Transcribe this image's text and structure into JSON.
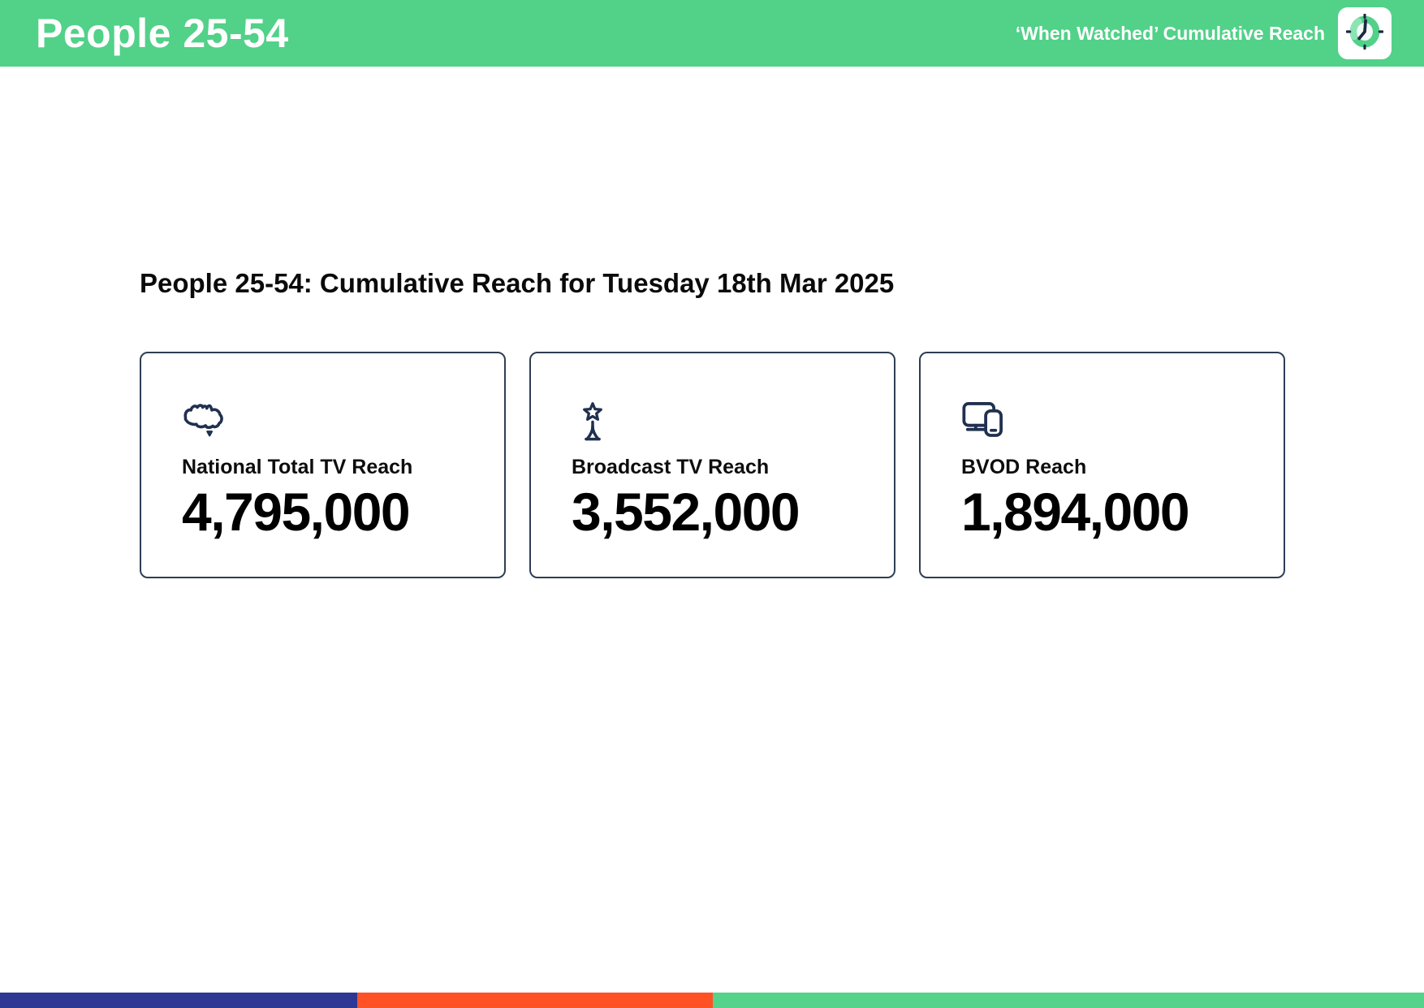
{
  "header": {
    "title": "People 25-54",
    "subtitle": "‘When Watched’ Cumulative Reach",
    "logo_icon": "clock-icon",
    "bg_color": "#52d189"
  },
  "main": {
    "heading": "People 25-54: Cumulative Reach for Tuesday 18th Mar 2025",
    "cards": [
      {
        "icon": "australia-map-icon",
        "label": "National Total TV Reach",
        "value": "4,795,000"
      },
      {
        "icon": "broadcast-tower-icon",
        "label": "Broadcast TV Reach",
        "value": "3,552,000"
      },
      {
        "icon": "devices-icon",
        "label": "BVOD Reach",
        "value": "1,894,000"
      }
    ]
  },
  "footer": {
    "segments": [
      {
        "name": "blue",
        "color": "#2e3793",
        "width_pct": 25.06
      },
      {
        "name": "orange",
        "color": "#ff5126",
        "width_pct": 24.98
      },
      {
        "name": "green",
        "color": "#55d38a",
        "width_pct": 49.96
      }
    ]
  },
  "theme": {
    "green": "#52d189",
    "navy": "#20304f",
    "card_border": "#2f3e55"
  }
}
